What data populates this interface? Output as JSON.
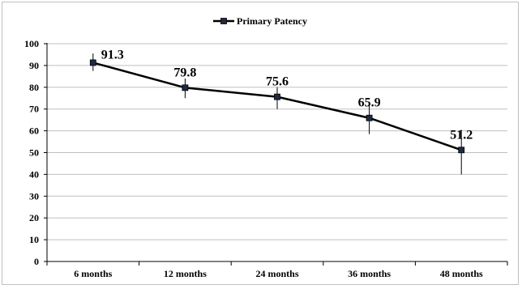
{
  "chart_data": {
    "type": "line",
    "title": "",
    "xlabel": "",
    "ylabel": "",
    "categories": [
      "6 months",
      "12 months",
      "24 months",
      "36 months",
      "48 months"
    ],
    "series": [
      {
        "name": "Primary Patency",
        "values": [
          91.3,
          79.8,
          75.6,
          65.9,
          51.2
        ],
        "data_labels": [
          "91.3",
          "79.8",
          "75.6",
          "65.9",
          "51.2"
        ],
        "error_low": [
          87.5,
          75.0,
          70.0,
          58.5,
          40.0
        ],
        "error_high": [
          95.5,
          84.0,
          80.0,
          72.5,
          60.5
        ],
        "color": "#000000",
        "marker_color": "#1f2a44"
      }
    ],
    "ylim": [
      0,
      100
    ],
    "yticks": [
      "0",
      "10",
      "20",
      "30",
      "40",
      "50",
      "60",
      "70",
      "80",
      "90",
      "100"
    ],
    "ytick_values": [
      0,
      10,
      20,
      30,
      40,
      50,
      60,
      70,
      80,
      90,
      100
    ],
    "grid": true,
    "legend_position": "top-center"
  }
}
